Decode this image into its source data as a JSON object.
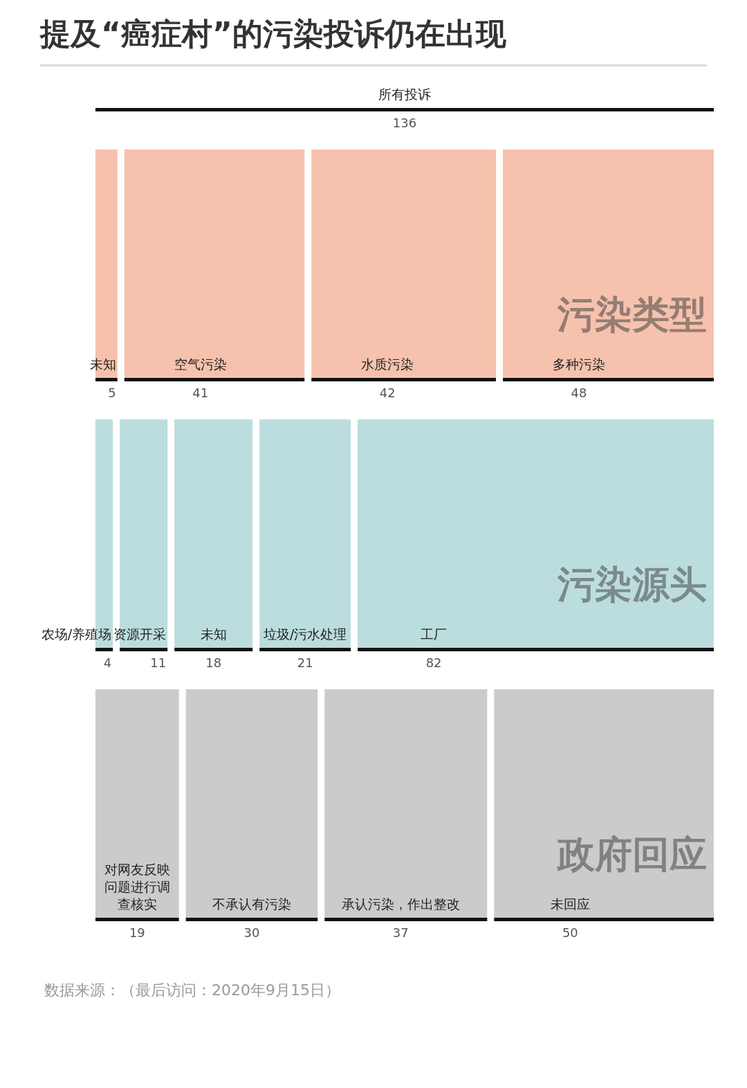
{
  "chart_data": [
    {
      "type": "other",
      "title": "提及“癌症村”的污染投诉仍在出现",
      "categories": [
        "所有投诉"
      ],
      "values": [
        136
      ],
      "data_labels": true
    },
    {
      "type": "other",
      "title": "污染类型",
      "categories": [
        "未知",
        "空气污染",
        "水质污染",
        "多种污染"
      ],
      "values": [
        5,
        41,
        42,
        48
      ],
      "color": "#f6c2ad",
      "data_labels": true
    },
    {
      "type": "other",
      "title": "污染源头",
      "categories": [
        "农场/养殖场",
        "资源开采",
        "未知",
        "垃圾/污水处理",
        "工厂"
      ],
      "values": [
        4,
        11,
        18,
        21,
        82
      ],
      "color": "#bcdddd",
      "data_labels": true
    },
    {
      "type": "other",
      "title": "政府回应",
      "categories": [
        "对网友反映问题进行调查核实",
        "不承认有污染",
        "承认污染，作出整改",
        "未回应"
      ],
      "values": [
        19,
        30,
        37,
        50
      ],
      "color": "#cbcbcb",
      "data_labels": true,
      "annotations": [
        "数据来源：（最后访问：2020年9月15日）"
      ]
    }
  ]
}
